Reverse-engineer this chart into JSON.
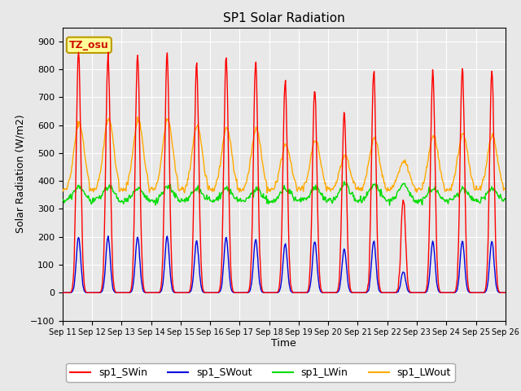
{
  "title": "SP1 Solar Radiation",
  "xlabel": "Time",
  "ylabel": "Solar Radiation (W/m2)",
  "ylim": [
    -100,
    950
  ],
  "yticks": [
    -100,
    0,
    100,
    200,
    300,
    400,
    500,
    600,
    700,
    800,
    900
  ],
  "x_labels": [
    "Sep 11",
    "Sep 12",
    "Sep 13",
    "Sep 14",
    "Sep 15",
    "Sep 16",
    "Sep 17",
    "Sep 18",
    "Sep 19",
    "Sep 20",
    "Sep 21",
    "Sep 22",
    "Sep 23",
    "Sep 24",
    "Sep 25",
    "Sep 26"
  ],
  "colors": {
    "SWin": "#ff0000",
    "SWout": "#0000dd",
    "LWin": "#00dd00",
    "LWout": "#ffaa00"
  },
  "legend_labels": [
    "sp1_SWin",
    "sp1_SWout",
    "sp1_LWin",
    "sp1_LWout"
  ],
  "annotation_text": "TZ_osu",
  "annotation_color": "#cc1100",
  "annotation_bg": "#ffff99",
  "annotation_border": "#bb9900",
  "plot_bg": "#e8e8e8",
  "grid_color": "#ffffff",
  "n_days": 15,
  "SWin_peaks": [
    870,
    850,
    855,
    850,
    820,
    850,
    825,
    760,
    735,
    640,
    795,
    335,
    800,
    805,
    800
  ],
  "SWout_peaks": [
    200,
    200,
    200,
    200,
    185,
    200,
    190,
    175,
    185,
    155,
    185,
    75,
    185,
    185,
    185
  ],
  "LWout_base": 370,
  "LWout_peaks": [
    610,
    625,
    620,
    620,
    600,
    590,
    585,
    530,
    545,
    490,
    555,
    470,
    560,
    570,
    560
  ],
  "LWin_base": 330,
  "LWin_peaks": [
    400,
    400,
    395,
    400,
    390,
    390,
    385,
    395,
    395,
    415,
    410,
    410,
    390,
    390,
    390
  ]
}
